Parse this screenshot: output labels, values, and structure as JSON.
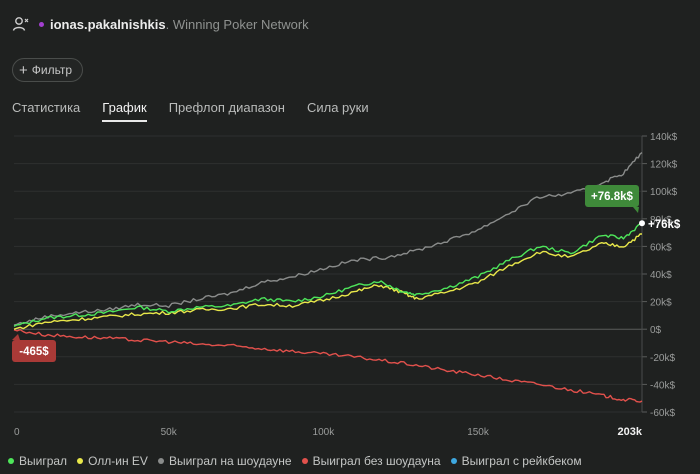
{
  "header": {
    "username": "ionas.pakalnishkis",
    "network": "Winning Poker Network",
    "dot_color": "#a33fd0",
    "icon": "user-icon"
  },
  "filter": {
    "label": "Фильтр",
    "icon": "plus-icon"
  },
  "tabs": [
    {
      "label": "Статистика",
      "active": false
    },
    {
      "label": "График",
      "active": true
    },
    {
      "label": "Префлоп диапазон",
      "active": false
    },
    {
      "label": "Сила руки",
      "active": false
    }
  ],
  "legend": [
    {
      "label": "Выиграл",
      "color": "#4ee65a"
    },
    {
      "label": "Олл-ин EV",
      "color": "#e9e84a"
    },
    {
      "label": "Выиграл на шоудауне",
      "color": "#8a8c8b"
    },
    {
      "label": "Выиграл без шоудауна",
      "color": "#e2514c"
    },
    {
      "label": "Выиграл с рейкбеком",
      "color": "#3ea8e0"
    }
  ],
  "chart_data": {
    "type": "line",
    "xlabel": "",
    "ylabel": "",
    "x_ticks": [
      "0",
      "50k",
      "100k",
      "150k"
    ],
    "x_end_label": "203k",
    "y_ticks": [
      "140k$",
      "120k$",
      "100k$",
      "80k$",
      "60k$",
      "40k$",
      "20k$",
      "0$",
      "-20k$",
      "-40k$",
      "-60k$"
    ],
    "xlim": [
      0,
      203000
    ],
    "ylim": [
      -60000,
      140000
    ],
    "grid": true,
    "badges": {
      "won": "+76.8k$",
      "end": "+76k$",
      "non_showdown": "-465$"
    },
    "series": [
      {
        "name": "Выиграл",
        "color": "#4ee65a",
        "x": [
          0,
          10000,
          20000,
          30000,
          40000,
          50000,
          60000,
          70000,
          80000,
          90000,
          100000,
          110000,
          118000,
          125000,
          130000,
          140000,
          150000,
          160000,
          170000,
          180000,
          190000,
          197000,
          203000
        ],
        "y": [
          2000,
          8000,
          10000,
          12000,
          16000,
          13000,
          16000,
          17000,
          22000,
          20000,
          24000,
          31000,
          35000,
          28000,
          25000,
          30000,
          38000,
          50000,
          60000,
          55000,
          68000,
          66000,
          76800
        ]
      },
      {
        "name": "Олл-ин EV",
        "color": "#e9e84a",
        "x": [
          0,
          10000,
          20000,
          30000,
          40000,
          50000,
          60000,
          70000,
          80000,
          90000,
          100000,
          110000,
          118000,
          125000,
          130000,
          140000,
          150000,
          160000,
          170000,
          180000,
          190000,
          197000,
          203000
        ],
        "y": [
          0,
          5000,
          7000,
          9000,
          11000,
          12000,
          14000,
          15000,
          18000,
          17000,
          21000,
          27000,
          32000,
          27000,
          22000,
          27000,
          34000,
          46000,
          56000,
          52000,
          62000,
          60000,
          69000
        ]
      },
      {
        "name": "Выиграл на шоудауне",
        "color": "#8a8c8b",
        "x": [
          0,
          10000,
          20000,
          30000,
          40000,
          50000,
          60000,
          70000,
          80000,
          90000,
          100000,
          110000,
          120000,
          130000,
          140000,
          150000,
          160000,
          170000,
          180000,
          190000,
          197000,
          203000
        ],
        "y": [
          3000,
          9000,
          12000,
          14000,
          18000,
          17000,
          22000,
          26000,
          34000,
          38000,
          44000,
          50000,
          52000,
          57000,
          64000,
          72000,
          84000,
          96000,
          98000,
          106000,
          113000,
          128000
        ]
      },
      {
        "name": "Выиграл без шоудауна",
        "color": "#e2514c",
        "x": [
          0,
          10000,
          20000,
          30000,
          40000,
          50000,
          60000,
          70000,
          80000,
          90000,
          100000,
          110000,
          120000,
          130000,
          140000,
          150000,
          160000,
          170000,
          180000,
          190000,
          197000,
          203000
        ],
        "y": [
          -465,
          -4000,
          -5500,
          -6500,
          -8000,
          -9000,
          -11000,
          -12000,
          -14000,
          -16000,
          -18000,
          -20000,
          -23000,
          -26000,
          -30000,
          -33000,
          -37000,
          -40000,
          -44000,
          -48000,
          -51000,
          -52000
        ]
      }
    ]
  }
}
